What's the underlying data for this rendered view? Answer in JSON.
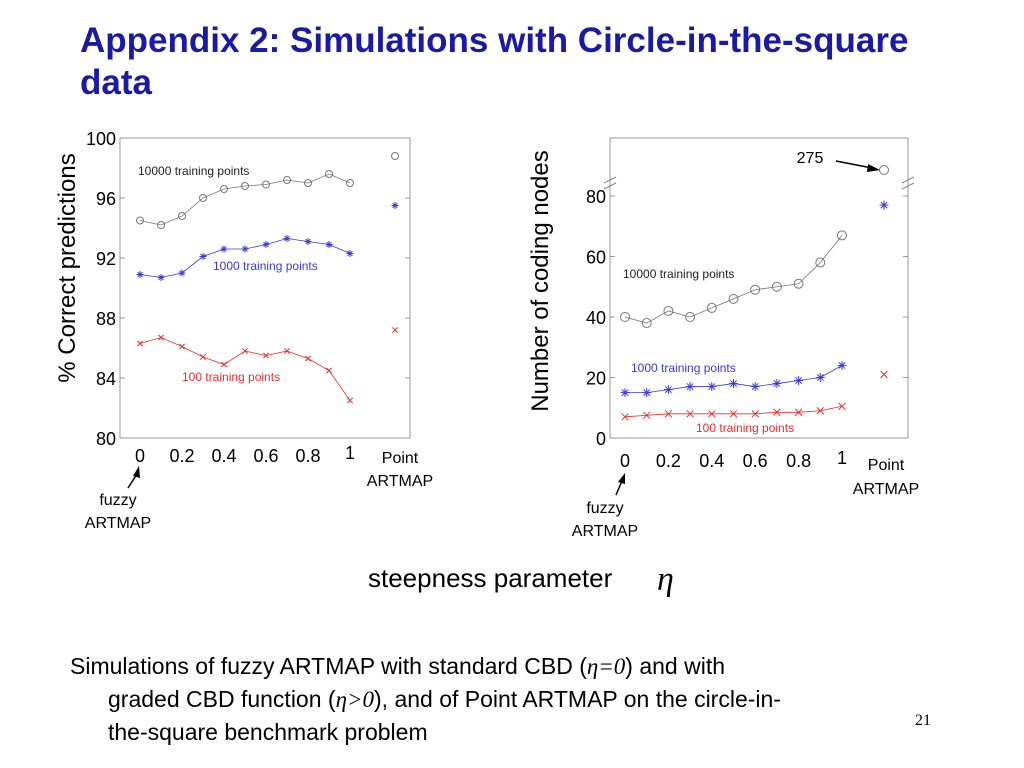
{
  "slide": {
    "title": "Appendix 2: Simulations with Circle-in-the-square data",
    "page_number": "21",
    "xaxis_label": "steepness parameter",
    "xaxis_symbol": "η",
    "caption": {
      "line1_pre": "Simulations of fuzzy ARTMAP with standard CBD (",
      "line1_eq": "η=0",
      "line1_post": ") and with",
      "line2_pre": "graded CBD function (",
      "line2_eq": "η>0",
      "line2_post": "), and of Point ARTMAP on the circle-in-",
      "line3": "the-square benchmark problem"
    }
  },
  "colors": {
    "title": "#1a1aa6",
    "s10000": "#777777",
    "s1000": "#3a3ad8",
    "s100": "#e03030"
  },
  "chart_data": [
    {
      "type": "line",
      "ylabel": "% Correct predictions",
      "ylim": [
        80,
        100
      ],
      "yticks": [
        "80",
        "84",
        "88",
        "92",
        "96",
        "100"
      ],
      "xticks": [
        "0",
        "0.2",
        "0.4",
        "0.6",
        "0.8",
        "1"
      ],
      "point_label": "Point\nARTMAP",
      "point_label_lines": [
        "Point",
        "ARTMAP"
      ],
      "fuzzy_label_lines": [
        "fuzzy",
        "ARTMAP"
      ],
      "x": [
        0,
        0.1,
        0.2,
        0.3,
        0.4,
        0.5,
        0.6,
        0.7,
        0.8,
        0.9,
        1.0
      ],
      "series": [
        {
          "name": "10000 training points",
          "marker": "circle",
          "values": [
            94.5,
            94.2,
            94.8,
            96.0,
            96.6,
            96.8,
            96.9,
            97.2,
            97.0,
            97.6,
            97.0
          ],
          "point_artmap": 98.8
        },
        {
          "name": "1000 training points",
          "marker": "star",
          "values": [
            90.9,
            90.7,
            91.0,
            92.1,
            92.6,
            92.6,
            92.9,
            93.3,
            93.1,
            92.9,
            92.3
          ],
          "point_artmap": 95.5
        },
        {
          "name": "100 training points",
          "marker": "x",
          "values": [
            86.3,
            86.7,
            86.1,
            85.4,
            84.9,
            85.8,
            85.5,
            85.8,
            85.3,
            84.5,
            82.5
          ],
          "point_artmap": 87.2
        }
      ]
    },
    {
      "type": "line",
      "ylabel": "Number of coding nodes",
      "ylim": [
        0,
        100
      ],
      "yticks": [
        "0",
        "20",
        "40",
        "60",
        "80"
      ],
      "xticks": [
        "0",
        "0.2",
        "0.4",
        "0.6",
        "0.8",
        "1"
      ],
      "point_label_lines": [
        "Point",
        "ARTMAP"
      ],
      "fuzzy_label_lines": [
        "fuzzy",
        "ARTMAP"
      ],
      "annotation": "275",
      "x": [
        0,
        0.1,
        0.2,
        0.3,
        0.4,
        0.5,
        0.6,
        0.7,
        0.8,
        0.9,
        1.0
      ],
      "series": [
        {
          "name": "10000 training points",
          "marker": "circle",
          "values": [
            40,
            38,
            42,
            40,
            43,
            46,
            49,
            50,
            51,
            58,
            67
          ],
          "point_artmap": 275
        },
        {
          "name": "1000 training points",
          "marker": "star",
          "values": [
            15,
            15,
            16,
            17,
            17,
            18,
            17,
            18,
            19,
            20,
            24
          ],
          "point_artmap": 77
        },
        {
          "name": "100 training points",
          "marker": "x",
          "values": [
            7,
            7.5,
            8,
            8,
            8,
            8,
            8,
            8.5,
            8.5,
            9,
            10.5
          ],
          "point_artmap": 21
        }
      ]
    }
  ]
}
